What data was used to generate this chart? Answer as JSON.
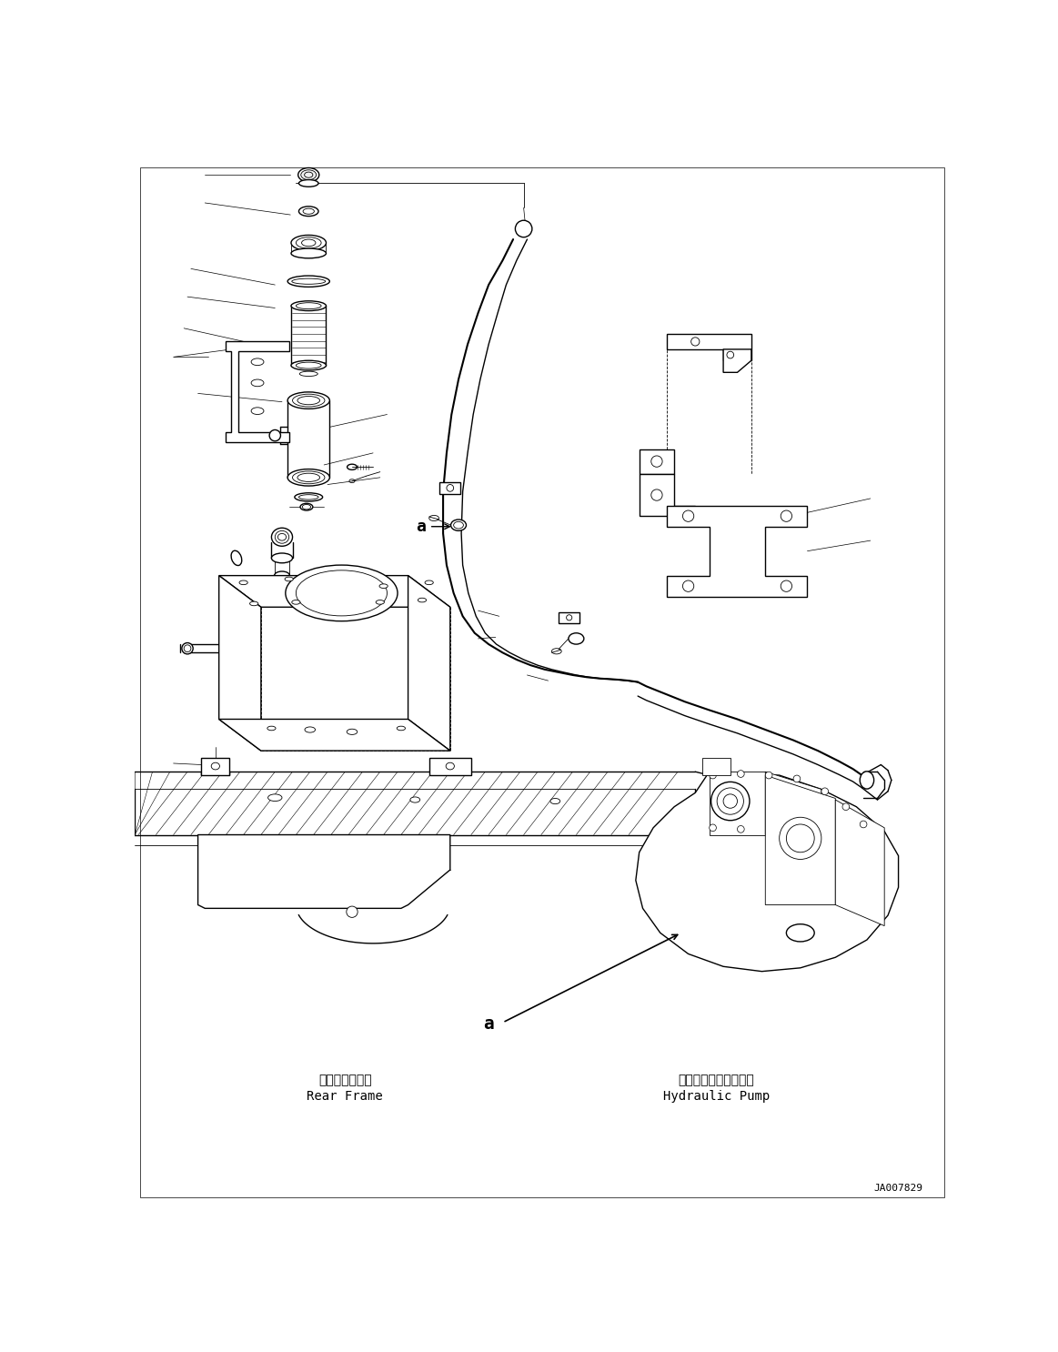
{
  "background_color": "#ffffff",
  "part_id": "JA007829",
  "label_rear_frame_jp": "リヤーフレーム",
  "label_rear_frame_en": "Rear Frame",
  "label_hydraulic_pump_jp": "ハイドロリックポンプ",
  "label_hydraulic_pump_en": "Hydraulic Pump",
  "label_a": "a",
  "fig_width": 11.63,
  "fig_height": 14.86,
  "lw_thin": 0.6,
  "lw_med": 1.0,
  "lw_thick": 1.5,
  "lw_leader": 0.5
}
